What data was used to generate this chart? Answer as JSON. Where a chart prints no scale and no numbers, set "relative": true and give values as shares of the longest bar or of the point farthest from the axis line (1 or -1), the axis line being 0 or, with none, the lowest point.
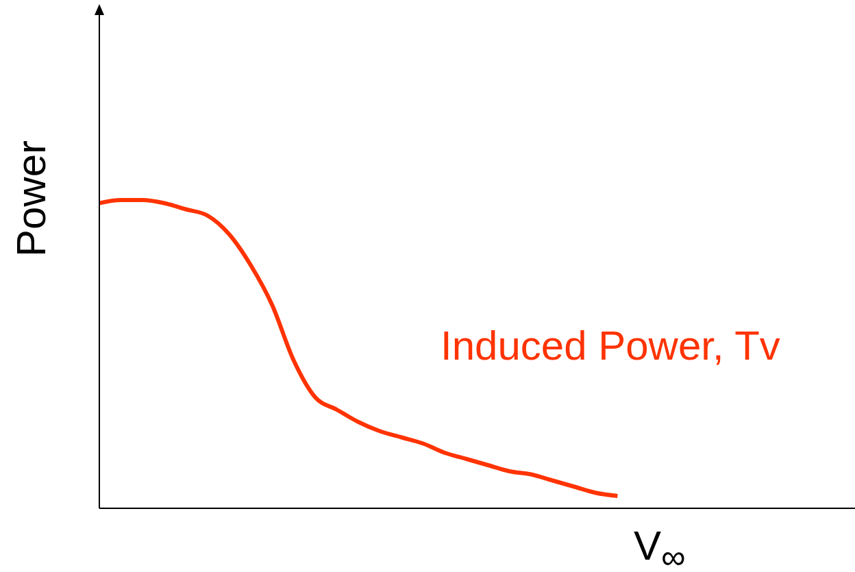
{
  "chart_data": {
    "type": "line",
    "relative": true,
    "xlabel": "V$_{∞}$",
    "ylabel": "Power",
    "categories": [
      null,
      null,
      null,
      null,
      null,
      null,
      null,
      null,
      null,
      null,
      null,
      null,
      null,
      null,
      null,
      null,
      null,
      null,
      null,
      null,
      null,
      null,
      null,
      null,
      null,
      null,
      null,
      null,
      null,
      null,
      null,
      null,
      null,
      null,
      null,
      null
    ],
    "series": [
      {
        "name": "Induced Power, Tv",
        "color": "#ff3300",
        "values": [
          0.99,
          1.0,
          1.0,
          0.99,
          0.97,
          0.95,
          0.89,
          0.79,
          0.66,
          0.48,
          0.36,
          0.32,
          0.28,
          0.25,
          0.23,
          0.21,
          0.18,
          0.16,
          0.14,
          0.12,
          0.11,
          0.09,
          0.07,
          0.05,
          0.04,
          null,
          null,
          null,
          null,
          null,
          null,
          null,
          null,
          null,
          null,
          null
        ]
      }
    ],
    "marker": "none",
    "line_style": "solid"
  }
}
